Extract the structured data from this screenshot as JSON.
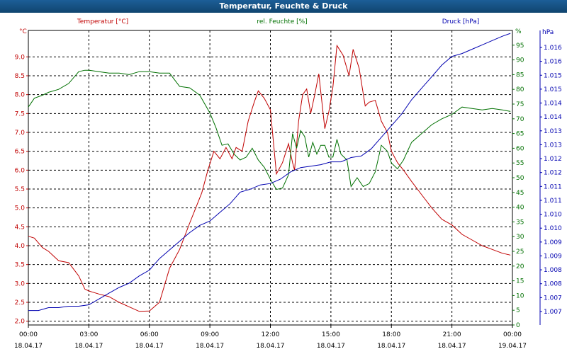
{
  "chart_data": {
    "type": "line",
    "title": "Temperatur, Feuchte & Druck",
    "x_ticks": [
      {
        "time": "00:00",
        "date": "18.04.17"
      },
      {
        "time": "03:00",
        "date": "18.04.17"
      },
      {
        "time": "06:00",
        "date": "18.04.17"
      },
      {
        "time": "09:00",
        "date": "18.04.17"
      },
      {
        "time": "12:00",
        "date": "18.04.17"
      },
      {
        "time": "15:00",
        "date": "18.04.17"
      },
      {
        "time": "18:00",
        "date": "18.04.17"
      },
      {
        "time": "21:00",
        "date": "18.04.17"
      },
      {
        "time": "00:00",
        "date": "19.04.17"
      }
    ],
    "xlim_hours": [
      0,
      24
    ],
    "grid": true,
    "axes": {
      "temperature": {
        "label": "Temperatur [°C]",
        "unit": "°C",
        "min": 1.9,
        "max": 9.7,
        "ticks": [
          "2.0",
          "2.5",
          "3.0",
          "3.5",
          "4.0",
          "4.5",
          "5.0",
          "5.5",
          "6.0",
          "6.5",
          "7.0",
          "7.5",
          "8.0",
          "8.5",
          "9.0"
        ],
        "color": "#c00000"
      },
      "humidity": {
        "label": "rel. Feuchte [%]",
        "unit": "%",
        "min": 0,
        "max": 100,
        "ticks": [
          "0",
          "5",
          "10",
          "15",
          "20",
          "25",
          "30",
          "35",
          "40",
          "45",
          "50",
          "55",
          "60",
          "65",
          "70",
          "75",
          "80",
          "85",
          "90",
          "95"
        ],
        "color": "#007000"
      },
      "pressure": {
        "label": "Druck [hPa]",
        "unit": "hPa",
        "min": 1006.3,
        "max": 1016.5,
        "ticks": [
          "1.007",
          "1.007",
          "1.008",
          "1.008",
          "1.009",
          "1.009",
          "1.010",
          "1.010",
          "1.011",
          "1.011",
          "1.012",
          "1.012",
          "1.013",
          "1.013",
          "1.014",
          "1.014",
          "1.015",
          "1.015",
          "1.016",
          "1.016"
        ],
        "color": "#0000b0"
      }
    },
    "series": [
      {
        "name": "Temperatur [°C]",
        "axis": "temperature",
        "color": "#c00000",
        "x": [
          0,
          0.3,
          0.7,
          1.0,
          1.5,
          2.0,
          2.5,
          2.8,
          3.0,
          3.5,
          4.0,
          4.5,
          5.0,
          5.5,
          6.0,
          6.5,
          7.0,
          7.5,
          8.0,
          8.3,
          8.6,
          8.9,
          9.2,
          9.5,
          9.8,
          10.1,
          10.3,
          10.6,
          10.9,
          11.2,
          11.4,
          11.7,
          12.0,
          12.3,
          12.6,
          12.9,
          13.1,
          13.2,
          13.4,
          13.6,
          13.8,
          14.0,
          14.2,
          14.4,
          14.7,
          14.9,
          15.1,
          15.3,
          15.6,
          15.9,
          16.1,
          16.4,
          16.7,
          16.9,
          17.2,
          17.5,
          17.8,
          18.0,
          18.3,
          18.6,
          19.0,
          19.5,
          20.0,
          20.5,
          21.0,
          21.5,
          22.0,
          22.5,
          23.0,
          23.5,
          23.9
        ],
        "y": [
          4.25,
          4.2,
          3.95,
          3.85,
          3.6,
          3.55,
          3.2,
          2.85,
          2.8,
          2.72,
          2.65,
          2.5,
          2.38,
          2.26,
          2.27,
          2.5,
          3.4,
          3.9,
          4.6,
          5.0,
          5.4,
          6.0,
          6.5,
          6.3,
          6.6,
          6.3,
          6.6,
          6.5,
          7.3,
          7.8,
          8.1,
          7.9,
          7.6,
          5.9,
          6.2,
          6.7,
          6.2,
          6.0,
          7.3,
          8.0,
          8.15,
          7.5,
          8.0,
          8.55,
          7.1,
          7.55,
          8.2,
          9.3,
          9.05,
          8.5,
          9.2,
          8.7,
          7.7,
          7.8,
          7.85,
          7.3,
          7.0,
          6.5,
          6.2,
          6.0,
          5.7,
          5.35,
          5.0,
          4.7,
          4.55,
          4.3,
          4.15,
          4.0,
          3.9,
          3.8,
          3.75
        ]
      },
      {
        "name": "rel. Feuchte [%]",
        "axis": "humidity",
        "color": "#007000",
        "x": [
          0,
          0.3,
          0.7,
          1.0,
          1.5,
          2.0,
          2.5,
          2.8,
          3.0,
          3.5,
          4.0,
          4.5,
          5.0,
          5.5,
          6.0,
          6.5,
          7.0,
          7.5,
          8.0,
          8.5,
          9.0,
          9.3,
          9.6,
          9.9,
          10.2,
          10.5,
          10.8,
          11.1,
          11.4,
          11.7,
          12.0,
          12.3,
          12.6,
          12.9,
          13.1,
          13.3,
          13.5,
          13.7,
          13.9,
          14.1,
          14.3,
          14.5,
          14.7,
          14.9,
          15.1,
          15.3,
          15.5,
          15.8,
          16.0,
          16.3,
          16.6,
          16.9,
          17.2,
          17.5,
          17.8,
          18.0,
          18.3,
          18.6,
          19.0,
          19.5,
          20.0,
          20.5,
          21.0,
          21.5,
          22.0,
          22.5,
          23.0,
          23.5,
          23.9
        ],
        "y": [
          74,
          77,
          78,
          79,
          80,
          82,
          86,
          86.5,
          86.5,
          86,
          85.5,
          85.5,
          85,
          86,
          86,
          85.5,
          85.5,
          81,
          80.5,
          78,
          72,
          67,
          61,
          61.5,
          58,
          56,
          57,
          60,
          56,
          53.5,
          49.5,
          46,
          46.5,
          51,
          65,
          60,
          66,
          64,
          57,
          62,
          58,
          61,
          61,
          57,
          57,
          63,
          58,
          56,
          47,
          50,
          47,
          48,
          52,
          61,
          59,
          55,
          53,
          56,
          62,
          65,
          68,
          70,
          71.5,
          74,
          73.5,
          73,
          73.5,
          73,
          72.5
        ]
      },
      {
        "name": "Druck [hPa]",
        "axis": "pressure",
        "color": "#0000b0",
        "x": [
          0,
          0.5,
          1.0,
          1.5,
          2.0,
          2.5,
          3.0,
          3.5,
          4.0,
          4.5,
          5.0,
          5.5,
          6.0,
          6.5,
          7.0,
          7.5,
          8.0,
          8.5,
          9.0,
          9.5,
          10.0,
          10.5,
          11.0,
          11.5,
          12.0,
          12.5,
          13.0,
          13.5,
          14.0,
          14.5,
          15.0,
          15.5,
          16.0,
          16.5,
          17.0,
          17.5,
          18.0,
          18.5,
          19.0,
          19.5,
          20.0,
          20.5,
          21.0,
          21.5,
          22.0,
          22.5,
          23.0,
          23.5,
          23.9
        ],
        "y": [
          1006.8,
          1006.8,
          1006.9,
          1006.9,
          1006.95,
          1006.95,
          1007.0,
          1007.2,
          1007.4,
          1007.6,
          1007.75,
          1008.0,
          1008.2,
          1008.6,
          1008.9,
          1009.2,
          1009.5,
          1009.75,
          1009.9,
          1010.2,
          1010.5,
          1010.9,
          1011.0,
          1011.15,
          1011.2,
          1011.35,
          1011.6,
          1011.75,
          1011.8,
          1011.85,
          1011.95,
          1011.95,
          1012.1,
          1012.15,
          1012.4,
          1012.8,
          1013.2,
          1013.6,
          1014.1,
          1014.5,
          1014.9,
          1015.3,
          1015.6,
          1015.7,
          1015.85,
          1016.0,
          1016.15,
          1016.3,
          1016.4
        ]
      }
    ]
  }
}
